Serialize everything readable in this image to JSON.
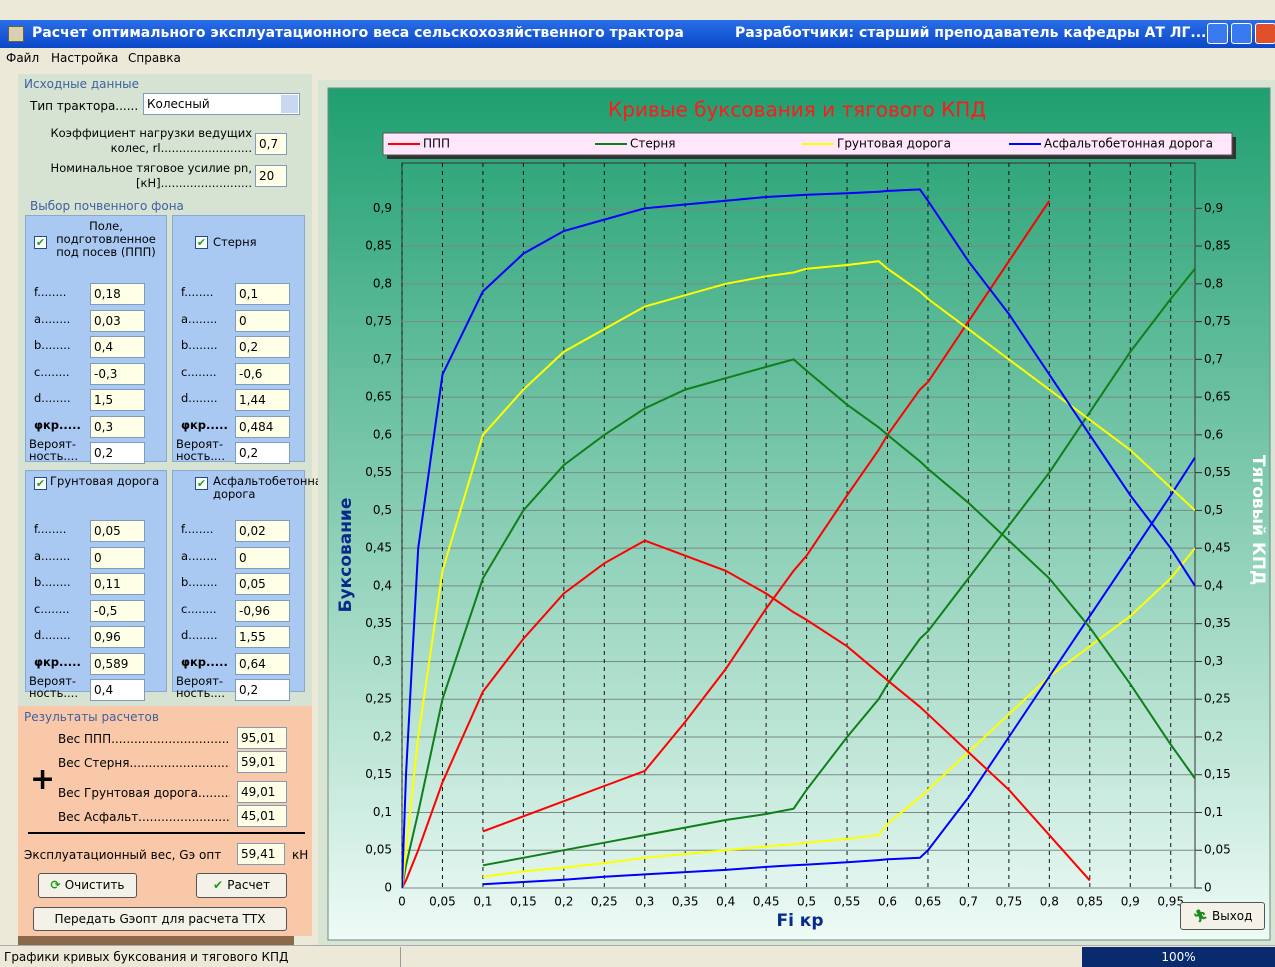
{
  "window": {
    "title": "Расчет оптимального эксплуатационного веса сельскохозяйственного трактора",
    "developers": "Разработчики: старший преподаватель кафедры АТ ЛГ..."
  },
  "menu": [
    "Файл",
    "Настройка",
    "Справка"
  ],
  "inputs": {
    "header": "Исходные данные",
    "tractor_type": {
      "label": "Тип трактора......",
      "value": "Колесный"
    },
    "load_coef": {
      "label": "Коэффициент нагрузки  ведущих колес, rl.........................",
      "value": "0,7"
    },
    "traction": {
      "label": "Номинальное тяговое усилие pn, [кН].........................",
      "value": "20"
    }
  },
  "soils": {
    "header": "Выбор почвенного фона",
    "param_labels": [
      "f........",
      "a........",
      "b........",
      "c........",
      "d........",
      "φкр.....",
      "Вероят-\nность...."
    ],
    "items": [
      {
        "name": "Поле, подготовленное под посев (ППП)",
        "checked": true,
        "params": [
          "0,18",
          "0,03",
          "0,4",
          "-0,3",
          "1,5",
          "0,3",
          "0,2"
        ]
      },
      {
        "name": "Стерня",
        "checked": true,
        "params": [
          "0,1",
          "0",
          "0,2",
          "-0,6",
          "1,44",
          "0,484",
          "0,2"
        ]
      },
      {
        "name": "Грунтовая дорога",
        "checked": true,
        "params": [
          "0,05",
          "0",
          "0,11",
          "-0,5",
          "0,96",
          "0,589",
          "0,4"
        ]
      },
      {
        "name": "Асфальтобетонная дорога",
        "checked": true,
        "params": [
          "0,02",
          "0",
          "0,05",
          "-0,96",
          "1,55",
          "0,64",
          "0,2"
        ]
      }
    ]
  },
  "results": {
    "header": "Результаты расчетов",
    "rows": [
      {
        "label": "Вес ППП...............................",
        "value": "95,01"
      },
      {
        "label": "Вес Стерня..............................",
        "value": "59,01"
      },
      {
        "label": "Вес Грунтовая дорога..........",
        "value": "49,01"
      },
      {
        "label": "Вес Асфальт...........................",
        "value": "45,01"
      }
    ],
    "plus": "+",
    "total": {
      "label": "Эксплуатационный вес, Gэ опт",
      "value": "59,41",
      "unit": "кН"
    },
    "buttons": [
      "Очистить",
      "Расчет",
      "Передать Gэопт для расчета ТТХ"
    ]
  },
  "chart_data": {
    "type": "line",
    "title": "Кривые буксования и тягового КПД",
    "x_label": "Fi кр",
    "y_label": "Буксование",
    "y2_label": "Тяговый КПД",
    "grid": true,
    "xlim": [
      0,
      0.98
    ],
    "ylim": [
      0,
      0.96
    ],
    "y2lim": [
      0,
      0.96
    ],
    "xticks": [
      0,
      {
        "value": 0.05,
        "label": "0,05"
      },
      {
        "value": 0.1,
        "label": "0,1"
      },
      {
        "value": 0.15,
        "label": "0,15"
      },
      {
        "value": 0.2,
        "label": "0,2"
      },
      {
        "value": 0.25,
        "label": "0,25"
      },
      {
        "value": 0.3,
        "label": "0,3"
      },
      {
        "value": 0.35,
        "label": "0,35"
      },
      {
        "value": 0.4,
        "label": "0,4"
      },
      {
        "value": 0.45,
        "label": "0,45"
      },
      {
        "value": 0.5,
        "label": "0,5"
      },
      {
        "value": 0.55,
        "label": "0,55"
      },
      {
        "value": 0.6,
        "label": "0,6"
      },
      {
        "value": 0.65,
        "label": "0,65"
      },
      {
        "value": 0.7,
        "label": "0,7"
      },
      {
        "value": 0.75,
        "label": "0,75"
      },
      {
        "value": 0.8,
        "label": "0,8"
      },
      {
        "value": 0.85,
        "label": "0,85"
      },
      {
        "value": 0.9,
        "label": "0,9"
      },
      {
        "value": 0.95,
        "label": "0,95"
      }
    ],
    "yticks": [
      0,
      {
        "value": 0.05,
        "label": "0,05"
      },
      {
        "value": 0.1,
        "label": "0,1"
      },
      {
        "value": 0.15,
        "label": "0,15"
      },
      {
        "value": 0.2,
        "label": "0,2"
      },
      {
        "value": 0.25,
        "label": "0,25"
      },
      {
        "value": 0.3,
        "label": "0,3"
      },
      {
        "value": 0.35,
        "label": "0,35"
      },
      {
        "value": 0.4,
        "label": "0,4"
      },
      {
        "value": 0.45,
        "label": "0,45"
      },
      {
        "value": 0.5,
        "label": "0,5"
      },
      {
        "value": 0.55,
        "label": "0,55"
      },
      {
        "value": 0.6,
        "label": "0,6"
      },
      {
        "value": 0.65,
        "label": "0,65"
      },
      {
        "value": 0.7,
        "label": "0,7"
      },
      {
        "value": 0.75,
        "label": "0,75"
      },
      {
        "value": 0.8,
        "label": "0,8"
      },
      {
        "value": 0.85,
        "label": "0,85"
      },
      {
        "value": 0.9,
        "label": "0,9"
      }
    ],
    "y2ticks": [
      0,
      {
        "value": 0.05,
        "label": "0,05"
      },
      {
        "value": 0.1,
        "label": "0,1"
      },
      {
        "value": 0.15,
        "label": "0,15"
      },
      {
        "value": 0.2,
        "label": "0,2"
      },
      {
        "value": 0.25,
        "label": "0,25"
      },
      {
        "value": 0.3,
        "label": "0,3"
      },
      {
        "value": 0.35,
        "label": "0,35"
      },
      {
        "value": 0.4,
        "label": "0,4"
      },
      {
        "value": 0.45,
        "label": "0,45"
      },
      {
        "value": 0.5,
        "label": "0,5"
      },
      {
        "value": 0.55,
        "label": "0,55"
      },
      {
        "value": 0.6,
        "label": "0,6"
      },
      {
        "value": 0.65,
        "label": "0,65"
      },
      {
        "value": 0.7,
        "label": "0,7"
      },
      {
        "value": 0.75,
        "label": "0,75"
      },
      {
        "value": 0.8,
        "label": "0,8"
      },
      {
        "value": 0.85,
        "label": "0,85"
      },
      {
        "value": 0.9,
        "label": "0,9"
      }
    ],
    "x": [
      0,
      0.005,
      0.02,
      0.05,
      0.1,
      0.15,
      0.2,
      0.25,
      0.3,
      0.35,
      0.4,
      0.45,
      0.484,
      0.5,
      0.55,
      0.589,
      0.6,
      0.64,
      0.65,
      0.7,
      0.75,
      0.8,
      0.85,
      0.9,
      0.95,
      0.98
    ],
    "series": [
      {
        "name": "ППП",
        "color": "#ff0000",
        "values": [
          null,
          null,
          null,
          null,
          0.075,
          0.095,
          0.115,
          0.135,
          0.155,
          0.22,
          0.29,
          0.37,
          0.42,
          0.44,
          0.52,
          0.58,
          0.6,
          0.66,
          0.67,
          0.75,
          0.83,
          0.91,
          null,
          null,
          null,
          null
        ]
      },
      {
        "name": "Стерня",
        "color": "#0f7f1a",
        "values": [
          null,
          null,
          null,
          null,
          0.03,
          0.04,
          0.05,
          0.06,
          0.07,
          0.08,
          0.09,
          0.098,
          0.105,
          0.13,
          0.2,
          0.25,
          0.27,
          0.33,
          0.34,
          0.41,
          0.48,
          0.55,
          0.63,
          0.71,
          0.78,
          0.82
        ]
      },
      {
        "name": "Грунтовая дорога",
        "color": "#ffff00",
        "values": [
          null,
          null,
          null,
          null,
          0.015,
          0.022,
          0.027,
          0.033,
          0.04,
          0.045,
          0.05,
          0.055,
          0.058,
          0.06,
          0.065,
          0.07,
          0.085,
          0.12,
          0.13,
          0.18,
          0.23,
          0.28,
          0.32,
          0.36,
          0.41,
          0.45
        ]
      },
      {
        "name": "Асфальтобетонная дорога",
        "color": "#0000ff",
        "values": [
          null,
          null,
          null,
          null,
          0.005,
          0.008,
          0.011,
          0.015,
          0.018,
          0.021,
          0.024,
          0.028,
          0.03,
          0.031,
          0.034,
          0.037,
          0.038,
          0.04,
          0.05,
          0.12,
          0.2,
          0.28,
          0.36,
          0.44,
          0.52,
          0.57
        ]
      },
      {
        "color": "#ff0000",
        "axis": "y2",
        "values": [
          0,
          0.01,
          0.05,
          0.14,
          0.26,
          0.33,
          0.39,
          0.43,
          0.46,
          0.44,
          0.42,
          0.39,
          0.365,
          0.355,
          0.32,
          0.285,
          0.275,
          0.24,
          0.23,
          0.18,
          0.13,
          0.07,
          0.01,
          null,
          null,
          null
        ]
      },
      {
        "color": "#0f7f1a",
        "axis": "y2",
        "values": [
          0,
          0.03,
          0.1,
          0.25,
          0.41,
          0.5,
          0.56,
          0.6,
          0.635,
          0.66,
          0.675,
          0.69,
          0.7,
          0.685,
          0.64,
          0.61,
          0.6,
          0.565,
          0.555,
          0.51,
          0.46,
          0.41,
          0.345,
          0.27,
          0.19,
          0.145
        ]
      },
      {
        "color": "#ffff00",
        "axis": "y2",
        "values": [
          0,
          0.05,
          0.2,
          0.42,
          0.6,
          0.66,
          0.71,
          0.74,
          0.77,
          0.785,
          0.8,
          0.81,
          0.815,
          0.82,
          0.825,
          0.83,
          0.82,
          0.79,
          0.78,
          0.74,
          0.7,
          0.66,
          0.62,
          0.58,
          0.53,
          0.5
        ]
      },
      {
        "color": "#0000ff",
        "axis": "y2",
        "values": [
          0,
          0.15,
          0.45,
          0.68,
          0.79,
          0.84,
          0.87,
          0.885,
          0.9,
          0.905,
          0.91,
          0.915,
          0.917,
          0.918,
          0.92,
          0.922,
          0.923,
          0.925,
          0.91,
          0.83,
          0.76,
          0.68,
          0.6,
          0.52,
          0.45,
          0.4
        ]
      }
    ]
  },
  "exit": "Выход",
  "status": {
    "text": "Графики кривых буксования и тягового КПД",
    "progress": "100%"
  }
}
